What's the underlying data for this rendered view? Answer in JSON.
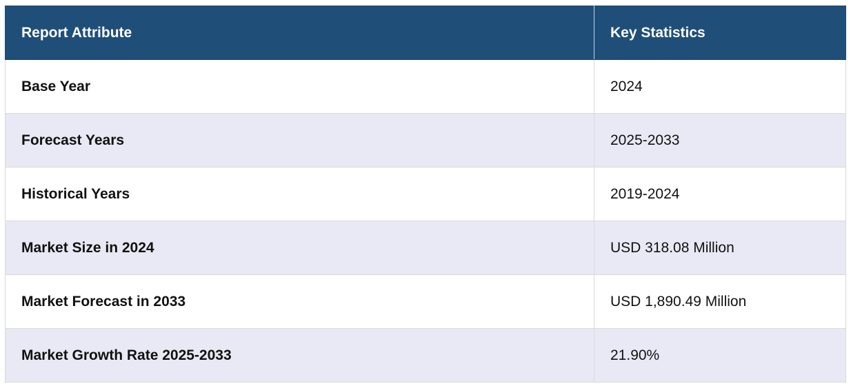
{
  "table": {
    "header": [
      "Report Attribute",
      "Key Statistics"
    ],
    "rows": [
      [
        "Base Year",
        "2024"
      ],
      [
        "Forecast Years",
        "2025-2033"
      ],
      [
        "Historical Years",
        "2019-2024"
      ],
      [
        "Market Size in 2024",
        "USD 318.08 Million"
      ],
      [
        "Market Forecast in 2033",
        "USD 1,890.49 Million"
      ],
      [
        "Market Growth Rate 2025-2033",
        "21.90%"
      ]
    ]
  }
}
